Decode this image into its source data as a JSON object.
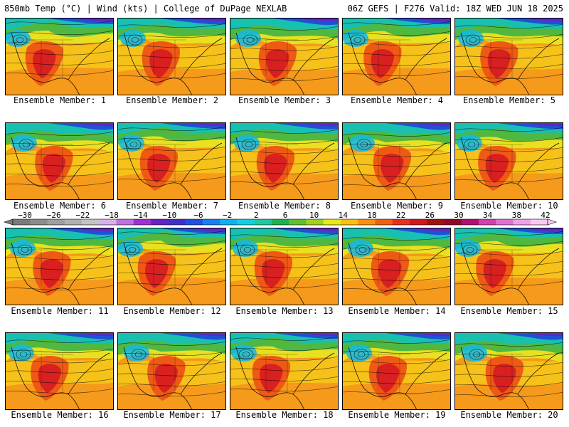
{
  "header": {
    "left": "850mb Temp (°C) | Wind (kts) | College of DuPage NEXLAB",
    "right": "06Z GEFS | F276 Valid: 18Z WED JUN 18 2025"
  },
  "member_label_prefix": "Ensemble Member: ",
  "members": [
    {
      "label": "Ensemble Member: 1"
    },
    {
      "label": "Ensemble Member: 2"
    },
    {
      "label": "Ensemble Member: 3"
    },
    {
      "label": "Ensemble Member: 4"
    },
    {
      "label": "Ensemble Member: 5"
    },
    {
      "label": "Ensemble Member: 6"
    },
    {
      "label": "Ensemble Member: 7"
    },
    {
      "label": "Ensemble Member: 8"
    },
    {
      "label": "Ensemble Member: 9"
    },
    {
      "label": "Ensemble Member: 10"
    },
    {
      "label": "Ensemble Member: 11"
    },
    {
      "label": "Ensemble Member: 12"
    },
    {
      "label": "Ensemble Member: 13"
    },
    {
      "label": "Ensemble Member: 14"
    },
    {
      "label": "Ensemble Member: 15"
    },
    {
      "label": "Ensemble Member: 16"
    },
    {
      "label": "Ensemble Member: 17"
    },
    {
      "label": "Ensemble Member: 18"
    },
    {
      "label": "Ensemble Member: 19"
    },
    {
      "label": "Ensemble Member: 20"
    }
  ],
  "colorbar": {
    "ticks": [
      "−30",
      "−26",
      "−22",
      "−18",
      "−14",
      "−10",
      "−6",
      "−2",
      "2",
      "6",
      "10",
      "14",
      "18",
      "22",
      "26",
      "30",
      "34",
      "38",
      "42"
    ],
    "colors": [
      "#7a7a7a",
      "#8c8c8c",
      "#9e9e9e",
      "#b0b0b0",
      "#c4c4c4",
      "#d8b0e8",
      "#c070e0",
      "#a030d0",
      "#6a20c0",
      "#4030c8",
      "#2050e0",
      "#1880f0",
      "#10b0f0",
      "#10d0e0",
      "#20c8a0",
      "#20b050",
      "#60c030",
      "#a0d020",
      "#e8e818",
      "#f8c010",
      "#f89010",
      "#f06010",
      "#e83020",
      "#d01818",
      "#a01010",
      "#900828",
      "#b01070",
      "#d040b0",
      "#e070d0",
      "#f0a0e8",
      "#f8c8f0"
    ]
  },
  "map_colors": {
    "warm_core": "#d82020",
    "hot": "#ee5a14",
    "warm": "#f59a1a",
    "mild": "#f6c21a",
    "yellow": "#e8e020",
    "green": "#50b840",
    "teal": "#18c0b0",
    "cyan": "#10b8e8",
    "blue": "#2050d8",
    "purple": "#5a2cc0"
  }
}
